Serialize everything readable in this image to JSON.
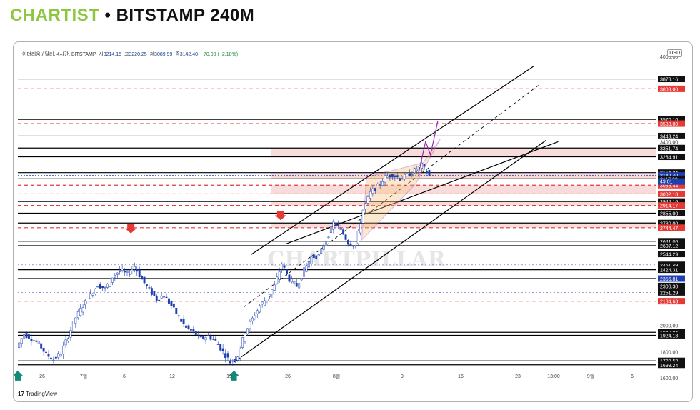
{
  "header": {
    "brand": "CHARTIST",
    "separator": " • ",
    "title": "BITSTAMP 240M"
  },
  "legend": {
    "symbol": "이더리움 / 달러, 4시간, BITSTAMP",
    "open_label": "시",
    "open": "3214.15",
    "high_label": "고",
    "high": "3220.25",
    "low_label": "저",
    "low": "3089.99",
    "close_label": "종",
    "close": "3142.40",
    "change": "−70.08 (−2.18%)"
  },
  "currency": "USD",
  "footer": {
    "logo": "TradingView"
  },
  "watermark": "CHARTPILLAR",
  "colors": {
    "up": "#26a69a",
    "down": "#ef5350",
    "candle_up": "#1e3fb0",
    "candle_down": "#1e3fb0",
    "level_line": "#000000",
    "level_dashed": "#e53935",
    "zone": "#f6d3d3",
    "wedge": "#9c27b0",
    "arrow_down": "#e53935",
    "arrow_up": "#13897a"
  },
  "chart_data": {
    "type": "candlestick",
    "title": "",
    "ylim": [
      1600,
      4050
    ],
    "x_ticks": [
      "26",
      "7월",
      "6",
      "12",
      "19",
      "26",
      "8월",
      "9",
      "16",
      "23",
      "13:00",
      "9월",
      "6"
    ],
    "y_ticks": [
      "1600.00",
      "1800.00",
      "2000.00"
    ],
    "price_scale_top_label": "4000.00",
    "levels": [
      {
        "value": 3878.16,
        "label": "3878.16",
        "style": "solid"
      },
      {
        "value": 3803.0,
        "label": "3803.00",
        "style": "dashed-red"
      },
      {
        "value": 3570.1,
        "label": "3570.10",
        "style": "solid"
      },
      {
        "value": 3538.0,
        "label": "3538.00",
        "style": "dashed-red"
      },
      {
        "value": 3538.0,
        "label": "3538.00",
        "style": "dashed-red"
      },
      {
        "value": 3443.24,
        "label": "3443.24",
        "style": "solid"
      },
      {
        "value": 3400.0,
        "label": "3400.00",
        "style": "tick"
      },
      {
        "value": 3351.74,
        "label": "3351.74",
        "style": "solid"
      },
      {
        "value": 3284.91,
        "label": "3284.91",
        "style": "solid"
      },
      {
        "value": 3164.34,
        "label": "3164.34",
        "style": "solid"
      },
      {
        "value": 3142.4,
        "label": "3142.40",
        "style": "current"
      },
      {
        "value": 3117.0,
        "label": "3117.00",
        "style": "solid"
      },
      {
        "value": 3068.44,
        "label": "3068.44",
        "style": "dashed-red"
      },
      {
        "value": 3002.18,
        "label": "3002.18",
        "style": "dashed-red"
      },
      {
        "value": 2944.16,
        "label": "2944.16",
        "style": "solid"
      },
      {
        "value": 2914.17,
        "label": "2914.17",
        "style": "dashed-red"
      },
      {
        "value": 2855.0,
        "label": "2855.00",
        "style": "solid"
      },
      {
        "value": 2780.0,
        "label": "2780.00",
        "style": "solid"
      },
      {
        "value": 2744.47,
        "label": "2744.47",
        "style": "dashed-red"
      },
      {
        "value": 2641.06,
        "label": "2641.06",
        "style": "solid"
      },
      {
        "value": 2607.12,
        "label": "2607.12",
        "style": "solid"
      },
      {
        "value": 2544.29,
        "label": "2544.29",
        "style": "dotted"
      },
      {
        "value": 2461.49,
        "label": "2461.49",
        "style": "dotted"
      },
      {
        "value": 2424.31,
        "label": "2424.31",
        "style": "solid"
      },
      {
        "value": 2356.81,
        "label": "2356.81",
        "style": "solid-blue"
      },
      {
        "value": 2300.3,
        "label": "2300.30",
        "style": "dotted"
      },
      {
        "value": 2251.29,
        "label": "2251.29",
        "style": "dotted"
      },
      {
        "value": 2184.63,
        "label": "2184.63",
        "style": "dashed-red"
      },
      {
        "value": 1947.04,
        "label": "1947.04",
        "style": "solid"
      },
      {
        "value": 1924.18,
        "label": "1924.18",
        "style": "solid"
      },
      {
        "value": 1729.53,
        "label": "1729.53",
        "style": "solid"
      },
      {
        "value": 1699.24,
        "label": "1699.24",
        "style": "solid"
      }
    ],
    "current_price": {
      "value": 3142.4,
      "countdown": "49:01"
    },
    "zones": [
      [
        3284.91,
        3351.74
      ],
      [
        3117.0,
        3164.34
      ],
      [
        2914.17,
        2944.16
      ],
      [
        2744.47,
        2780.0
      ],
      [
        3002.18,
        3068.44
      ]
    ],
    "price_path": [
      [
        0,
        1830
      ],
      [
        3,
        1935
      ],
      [
        6,
        1900
      ],
      [
        9,
        1860
      ],
      [
        12,
        1780
      ],
      [
        15,
        1740
      ],
      [
        18,
        1790
      ],
      [
        21,
        1920
      ],
      [
        24,
        2060
      ],
      [
        27,
        2150
      ],
      [
        30,
        2230
      ],
      [
        33,
        2310
      ],
      [
        36,
        2280
      ],
      [
        39,
        2370
      ],
      [
        42,
        2420
      ],
      [
        45,
        2390
      ],
      [
        48,
        2450
      ],
      [
        51,
        2350
      ],
      [
        54,
        2270
      ],
      [
        57,
        2200
      ],
      [
        60,
        2230
      ],
      [
        63,
        2150
      ],
      [
        66,
        2060
      ],
      [
        69,
        1980
      ],
      [
        72,
        1950
      ],
      [
        75,
        1900
      ],
      [
        78,
        1920
      ],
      [
        81,
        1880
      ],
      [
        84,
        1800
      ],
      [
        87,
        1720
      ],
      [
        90,
        1770
      ],
      [
        93,
        1950
      ],
      [
        96,
        2050
      ],
      [
        99,
        2150
      ],
      [
        102,
        2210
      ],
      [
        105,
        2300
      ],
      [
        108,
        2470
      ],
      [
        111,
        2350
      ],
      [
        114,
        2300
      ],
      [
        117,
        2420
      ],
      [
        120,
        2520
      ],
      [
        123,
        2530
      ],
      [
        126,
        2650
      ],
      [
        129,
        2780
      ],
      [
        132,
        2730
      ],
      [
        135,
        2630
      ],
      [
        138,
        2610
      ],
      [
        141,
        2880
      ],
      [
        144,
        3010
      ],
      [
        147,
        3060
      ],
      [
        150,
        3130
      ],
      [
        153,
        3150
      ],
      [
        156,
        3120
      ],
      [
        159,
        3140
      ],
      [
        162,
        3180
      ],
      [
        165,
        3220
      ],
      [
        168,
        3142
      ]
    ],
    "markers": [
      {
        "type": "arrow-down",
        "at": 46,
        "price": 2500
      },
      {
        "type": "arrow-down",
        "at": 107,
        "price": 2600
      },
      {
        "type": "arrow-up",
        "at": 0,
        "price": 1699
      },
      {
        "type": "arrow-up",
        "at": 88,
        "price": 1699
      }
    ]
  }
}
